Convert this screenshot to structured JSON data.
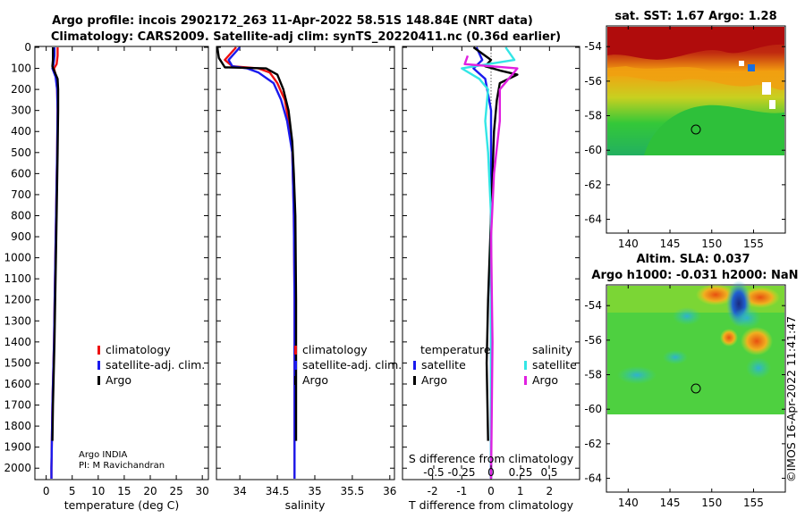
{
  "title": {
    "line1": "Argo profile: incois 2902172_263 11-Apr-2022 58.51S 148.84E (NRT data)",
    "line2": "Climatology: CARS2009. Satellite-adj clim: synTS_20220411.nc (0.36d earlier)"
  },
  "credit": {
    "line1": "Argo INDIA",
    "line2": "PI: M Ravichandran",
    "vertical": "©IMOS 16-Apr-2022 11:41:47"
  },
  "colors": {
    "red": "#ee1111",
    "blue": "#1a1aee",
    "black": "#000000",
    "cyan": "#33e6e6",
    "magenta": "#e020e0"
  },
  "chart_data": [
    {
      "type": "line",
      "name": "temperature",
      "xlabel": "temperature (deg C)",
      "ylabel": "depth",
      "xlim": [
        -2,
        31
      ],
      "ylim": [
        0,
        2050
      ],
      "xticks": [
        0,
        5,
        10,
        15,
        20,
        25,
        30
      ],
      "yticks": [
        0,
        100,
        200,
        300,
        400,
        500,
        600,
        700,
        800,
        900,
        1000,
        1100,
        1200,
        1300,
        1400,
        1500,
        1600,
        1700,
        1800,
        1900,
        2000
      ],
      "legend": [
        "climatology",
        "satellite-adj. clim.",
        "Argo"
      ],
      "series": [
        {
          "name": "climatology",
          "color": "red",
          "points": [
            [
              2.2,
              0
            ],
            [
              2.2,
              40
            ],
            [
              2.0,
              80
            ],
            [
              1.5,
              100
            ],
            [
              1.9,
              140
            ],
            [
              2.1,
              200
            ],
            [
              2.2,
              300
            ],
            [
              2.1,
              500
            ],
            [
              1.9,
              800
            ],
            [
              1.7,
              1100
            ],
            [
              1.5,
              1400
            ],
            [
              1.2,
              1700
            ],
            [
              1.0,
              2000
            ],
            [
              1.0,
              2050
            ]
          ]
        },
        {
          "name": "satellite-adj. clim.",
          "color": "blue",
          "points": [
            [
              1.6,
              0
            ],
            [
              1.6,
              40
            ],
            [
              1.4,
              80
            ],
            [
              1.2,
              100
            ],
            [
              1.8,
              140
            ],
            [
              2.1,
              200
            ],
            [
              2.2,
              300
            ],
            [
              2.1,
              500
            ],
            [
              1.9,
              800
            ],
            [
              1.7,
              1100
            ],
            [
              1.5,
              1400
            ],
            [
              1.2,
              1700
            ],
            [
              1.0,
              2000
            ],
            [
              1.0,
              2050
            ]
          ]
        },
        {
          "name": "Argo",
          "color": "black",
          "points": [
            [
              1.3,
              0
            ],
            [
              1.3,
              60
            ],
            [
              1.2,
              90
            ],
            [
              1.5,
              110
            ],
            [
              2.2,
              150
            ],
            [
              2.3,
              200
            ],
            [
              2.3,
              300
            ],
            [
              2.2,
              500
            ],
            [
              2.0,
              800
            ],
            [
              1.8,
              1100
            ],
            [
              1.6,
              1400
            ],
            [
              1.3,
              1700
            ],
            [
              1.2,
              1870
            ]
          ]
        }
      ]
    },
    {
      "type": "line",
      "name": "salinity",
      "xlabel": "salinity",
      "xlim": [
        33.7,
        36.05
      ],
      "ylim": [
        0,
        2050
      ],
      "xticks": [
        34,
        34.5,
        35,
        35.5,
        36
      ],
      "legend": [
        "climatology",
        "satellite-adj. clim.",
        "Argo"
      ],
      "series": [
        {
          "name": "climatology",
          "color": "red",
          "points": [
            [
              33.95,
              0
            ],
            [
              33.8,
              60
            ],
            [
              33.9,
              90
            ],
            [
              34.25,
              100
            ],
            [
              34.4,
              120
            ],
            [
              34.5,
              170
            ],
            [
              34.6,
              250
            ],
            [
              34.65,
              350
            ],
            [
              34.7,
              500
            ],
            [
              34.72,
              800
            ],
            [
              34.73,
              1200
            ],
            [
              34.73,
              2050
            ]
          ]
        },
        {
          "name": "satellite-adj. clim.",
          "color": "blue",
          "points": [
            [
              34.0,
              0
            ],
            [
              33.85,
              60
            ],
            [
              33.9,
              90
            ],
            [
              34.1,
              100
            ],
            [
              34.25,
              120
            ],
            [
              34.45,
              170
            ],
            [
              34.55,
              250
            ],
            [
              34.63,
              350
            ],
            [
              34.7,
              500
            ],
            [
              34.72,
              800
            ],
            [
              34.73,
              1200
            ],
            [
              34.73,
              2050
            ]
          ]
        },
        {
          "name": "Argo",
          "color": "black",
          "points": [
            [
              33.7,
              0
            ],
            [
              33.72,
              50
            ],
            [
              33.8,
              95
            ],
            [
              34.35,
              100
            ],
            [
              34.5,
              130
            ],
            [
              34.58,
              200
            ],
            [
              34.65,
              300
            ],
            [
              34.7,
              450
            ],
            [
              34.72,
              600
            ],
            [
              34.74,
              800
            ],
            [
              34.75,
              1200
            ],
            [
              34.75,
              1870
            ]
          ]
        }
      ]
    },
    {
      "type": "line",
      "name": "difference",
      "xlabel": "T difference from climatology",
      "xlabel2": "S difference from climatology",
      "xlim": [
        -3,
        3
      ],
      "ylim": [
        0,
        2050
      ],
      "xticks": [
        -2,
        -1,
        0,
        1,
        2
      ],
      "s_xticks": [
        "-0.5",
        "-0.25",
        "0",
        "0.25",
        "0.5"
      ],
      "legend_left_title": "temperature",
      "legend_right_title": "salinity",
      "legend_left": [
        "satellite",
        "Argo"
      ],
      "legend_right": [
        "satellite",
        "Argo"
      ],
      "series": [
        {
          "name": "temperature satellite",
          "color": "blue",
          "points": [
            [
              -0.5,
              0
            ],
            [
              -0.3,
              60
            ],
            [
              -0.6,
              100
            ],
            [
              -0.2,
              150
            ],
            [
              0,
              300
            ],
            [
              0,
              2050
            ]
          ]
        },
        {
          "name": "temperature Argo",
          "color": "black",
          "points": [
            [
              -0.6,
              0
            ],
            [
              0.0,
              60
            ],
            [
              -0.2,
              90
            ],
            [
              0.3,
              110
            ],
            [
              0.9,
              130
            ],
            [
              0.3,
              170
            ],
            [
              0.2,
              250
            ],
            [
              0.1,
              400
            ],
            [
              0,
              800
            ],
            [
              -0.1,
              1200
            ],
            [
              -0.15,
              1500
            ],
            [
              -0.1,
              1870
            ]
          ]
        },
        {
          "name": "salinity satellite",
          "color": "cyan",
          "points": [
            [
              0.5,
              0
            ],
            [
              0.8,
              60
            ],
            [
              -1.0,
              100
            ],
            [
              -0.4,
              150
            ],
            [
              -0.1,
              200
            ],
            [
              -0.2,
              350
            ],
            [
              -0.1,
              500
            ],
            [
              0,
              800
            ],
            [
              0,
              2050
            ]
          ]
        },
        {
          "name": "salinity Argo",
          "color": "magenta",
          "points": [
            [
              -0.8,
              40
            ],
            [
              -0.9,
              80
            ],
            [
              0.9,
              100
            ],
            [
              0.6,
              150
            ],
            [
              0.3,
              200
            ],
            [
              0.3,
              350
            ],
            [
              0.1,
              600
            ],
            [
              0,
              900
            ],
            [
              0.05,
              1400
            ],
            [
              0,
              2050
            ]
          ]
        }
      ]
    },
    {
      "type": "heatmap",
      "name": "sst-map",
      "title": "sat. SST: 1.67 Argo: 1.28",
      "xticks": [
        140,
        145,
        150,
        155
      ],
      "yticks": [
        -54,
        -56,
        -58,
        -60,
        -62,
        -64
      ],
      "marker": [
        148.84,
        -58.51
      ]
    },
    {
      "type": "heatmap",
      "name": "sla-map",
      "title_line1": "Altim. SLA: 0.037",
      "title_line2": "Argo h1000: -0.031 h2000: NaN",
      "xticks": [
        140,
        145,
        150,
        155
      ],
      "yticks": [
        -54,
        -56,
        -58,
        -60,
        -62,
        -64
      ],
      "marker": [
        148.84,
        -58.51
      ]
    }
  ]
}
